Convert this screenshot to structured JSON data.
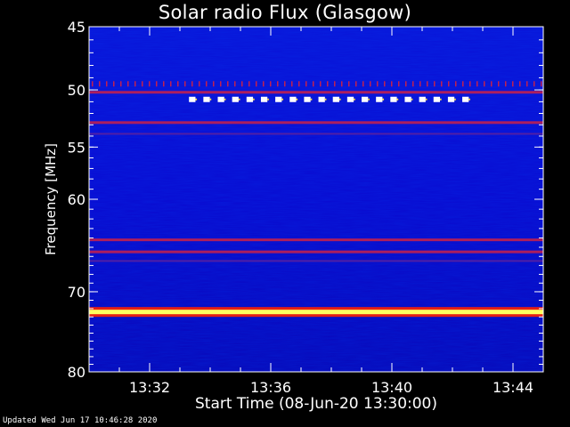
{
  "chart_data": {
    "type": "heatmap",
    "title": "Solar radio Flux (Glasgow)",
    "xlabel": "Start Time (08-Jun-20 13:30:00)",
    "ylabel": "Frequency [MHz]",
    "x_unit": "minutes",
    "xlim": [
      "13:30",
      "13:45"
    ],
    "ylim": [
      45,
      80
    ],
    "x_ticks": [
      "13:32",
      "13:36",
      "13:40",
      "13:44"
    ],
    "y_ticks": [
      45,
      50,
      55,
      60,
      70,
      80
    ],
    "y_scale": "log",
    "colormap": [
      "#000080",
      "#0000ff",
      "#ff0000",
      "#ffff00",
      "#ffffff"
    ],
    "intense_bands_mhz": [
      {
        "freq": 50.8,
        "level": "strong",
        "pattern": "dashed",
        "from": "13:33.3",
        "to": "13:42.8"
      },
      {
        "freq": 49.5,
        "level": "moderate",
        "pattern": "dotted"
      },
      {
        "freq": 50.2,
        "level": "moderate"
      },
      {
        "freq": 52.8,
        "level": "moderate"
      },
      {
        "freq": 53.8,
        "level": "weak"
      },
      {
        "freq": 64.2,
        "level": "moderate"
      },
      {
        "freq": 65.5,
        "level": "moderate"
      },
      {
        "freq": 66.5,
        "level": "weak"
      },
      {
        "freq": 72.4,
        "level": "saturated"
      }
    ]
  },
  "footer": {
    "updated": "Updated Wed Jun 17 10:46:28 2020"
  }
}
